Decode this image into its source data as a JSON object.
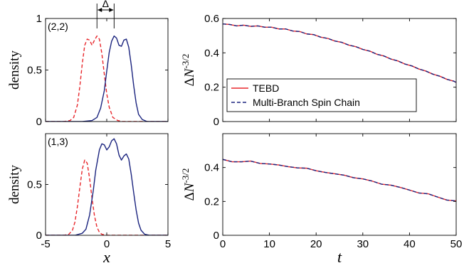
{
  "chart_data": [
    {
      "type": "line",
      "panel": "density-top",
      "annotation": "(2,2)",
      "delta_label": "Δ",
      "ylabel": "density",
      "xlim": [
        -5,
        5
      ],
      "ylim": [
        0,
        1
      ],
      "xticks": [],
      "yticks": [
        0,
        0.5,
        1
      ],
      "series": [
        {
          "color": "#e8262b",
          "dash": true,
          "x": [
            -5,
            -3.5,
            -3,
            -2.7,
            -2.4,
            -2.2,
            -2.0,
            -1.8,
            -1.6,
            -1.4,
            -1.2,
            -1.0,
            -0.8,
            -0.6,
            -0.4,
            -0.2,
            0.0,
            0.2,
            0.5,
            0.9,
            1.3,
            2.0,
            5
          ],
          "y": [
            0,
            0,
            0.01,
            0.04,
            0.16,
            0.34,
            0.56,
            0.74,
            0.8,
            0.79,
            0.74,
            0.79,
            0.83,
            0.8,
            0.66,
            0.46,
            0.27,
            0.14,
            0.04,
            0.01,
            0,
            0,
            0
          ]
        },
        {
          "color": "#1a237e",
          "dash": false,
          "x": [
            -5,
            -2.0,
            -1.2,
            -0.8,
            -0.5,
            -0.2,
            0.0,
            0.2,
            0.4,
            0.6,
            0.8,
            1.0,
            1.2,
            1.4,
            1.6,
            1.8,
            2.0,
            2.2,
            2.4,
            2.6,
            2.9,
            3.3,
            5
          ],
          "y": [
            0,
            0,
            0.01,
            0.04,
            0.13,
            0.3,
            0.49,
            0.67,
            0.78,
            0.83,
            0.81,
            0.74,
            0.73,
            0.79,
            0.8,
            0.72,
            0.55,
            0.35,
            0.18,
            0.07,
            0.02,
            0,
            0
          ]
        }
      ]
    },
    {
      "type": "line",
      "panel": "density-bottom",
      "annotation": "(1,3)",
      "ylabel": "density",
      "xlabel": "x",
      "xlim": [
        -5,
        5
      ],
      "ylim": [
        0,
        1
      ],
      "xticks": [
        -5,
        0,
        5
      ],
      "yticks": [
        0,
        0.5
      ],
      "series": [
        {
          "color": "#e8262b",
          "dash": true,
          "x": [
            -5,
            -3.5,
            -3.1,
            -2.8,
            -2.6,
            -2.4,
            -2.2,
            -2.0,
            -1.8,
            -1.6,
            -1.4,
            -1.2,
            -1.0,
            -0.8,
            -0.6,
            -0.4,
            0.0,
            5
          ],
          "y": [
            0,
            0,
            0.01,
            0.05,
            0.13,
            0.28,
            0.47,
            0.65,
            0.74,
            0.71,
            0.56,
            0.36,
            0.19,
            0.08,
            0.03,
            0.01,
            0,
            0
          ]
        },
        {
          "color": "#1a237e",
          "dash": false,
          "x": [
            -5,
            -2.6,
            -2.0,
            -1.7,
            -1.4,
            -1.1,
            -0.9,
            -0.6,
            -0.4,
            -0.2,
            0.0,
            0.2,
            0.4,
            0.6,
            0.8,
            1.0,
            1.2,
            1.4,
            1.6,
            1.8,
            2.0,
            2.2,
            2.4,
            2.6,
            2.8,
            3.1,
            3.5,
            5
          ],
          "y": [
            0,
            0,
            0.02,
            0.06,
            0.2,
            0.44,
            0.64,
            0.84,
            0.9,
            0.89,
            0.84,
            0.87,
            0.93,
            0.95,
            0.9,
            0.79,
            0.74,
            0.78,
            0.8,
            0.75,
            0.6,
            0.42,
            0.25,
            0.12,
            0.05,
            0.01,
            0,
            0
          ]
        }
      ]
    },
    {
      "type": "line",
      "panel": "dn-top",
      "ylabel": "ΔN^{-3/2}",
      "xlim": [
        0,
        50
      ],
      "ylim": [
        0,
        0.6
      ],
      "xticks": [],
      "yticks": [
        0,
        0.2,
        0.4,
        0.6
      ],
      "legend": {
        "placement": "lower-left",
        "entries": [
          "TEBD",
          "Multi-Branch Spin Chain"
        ]
      },
      "series": [
        {
          "name": "TEBD",
          "color": "#e8262b",
          "dash": false,
          "x": [
            0,
            1.5,
            3,
            4.5,
            6,
            7.5,
            9,
            10.5,
            12,
            13.5,
            15,
            16.5,
            18,
            19.5,
            21,
            22.5,
            24,
            25.5,
            27,
            28.5,
            30,
            31.5,
            33,
            34.5,
            36,
            37.5,
            39,
            40.5,
            42,
            43.5,
            45,
            46.5,
            48,
            49.5,
            50
          ],
          "y": [
            0.568,
            0.565,
            0.557,
            0.561,
            0.554,
            0.557,
            0.549,
            0.549,
            0.539,
            0.539,
            0.527,
            0.524,
            0.51,
            0.506,
            0.491,
            0.484,
            0.469,
            0.461,
            0.445,
            0.436,
            0.42,
            0.41,
            0.392,
            0.382,
            0.364,
            0.353,
            0.335,
            0.324,
            0.306,
            0.294,
            0.276,
            0.264,
            0.246,
            0.235,
            0.228
          ]
        },
        {
          "name": "Multi-Branch Spin Chain",
          "color": "#1a237e",
          "dash": true,
          "x": [
            0,
            1.5,
            3,
            4.5,
            6,
            7.5,
            9,
            10.5,
            12,
            13.5,
            15,
            16.5,
            18,
            19.5,
            21,
            22.5,
            24,
            25.5,
            27,
            28.5,
            30,
            31.5,
            33,
            34.5,
            36,
            37.5,
            39,
            40.5,
            42,
            43.5,
            45,
            46.5,
            48,
            49.5,
            50
          ],
          "y": [
            0.568,
            0.565,
            0.557,
            0.561,
            0.554,
            0.557,
            0.549,
            0.549,
            0.539,
            0.539,
            0.527,
            0.524,
            0.51,
            0.506,
            0.491,
            0.484,
            0.469,
            0.461,
            0.445,
            0.436,
            0.42,
            0.41,
            0.392,
            0.382,
            0.364,
            0.353,
            0.335,
            0.324,
            0.306,
            0.294,
            0.276,
            0.264,
            0.246,
            0.235,
            0.228
          ]
        }
      ]
    },
    {
      "type": "line",
      "panel": "dn-bottom",
      "ylabel": "ΔN^{-3/2}",
      "xlabel": "t",
      "xlim": [
        0,
        50
      ],
      "ylim": [
        0,
        0.6
      ],
      "xticks": [
        0,
        10,
        20,
        30,
        40,
        50
      ],
      "yticks": [
        0,
        0.2,
        0.4
      ],
      "series": [
        {
          "name": "TEBD",
          "color": "#e8262b",
          "dash": false,
          "x": [
            0,
            2,
            4,
            6,
            8,
            10,
            12,
            14,
            16,
            18,
            20,
            22,
            24,
            26,
            28,
            30,
            32,
            34,
            36,
            38,
            40,
            42,
            44,
            46,
            48,
            50
          ],
          "y": [
            0.448,
            0.434,
            0.434,
            0.438,
            0.424,
            0.421,
            0.415,
            0.405,
            0.398,
            0.396,
            0.381,
            0.371,
            0.363,
            0.355,
            0.34,
            0.333,
            0.32,
            0.302,
            0.296,
            0.283,
            0.267,
            0.25,
            0.245,
            0.226,
            0.208,
            0.203
          ]
        },
        {
          "name": "Multi-Branch Spin Chain",
          "color": "#1a237e",
          "dash": true,
          "x": [
            0,
            2,
            4,
            6,
            8,
            10,
            12,
            14,
            16,
            18,
            20,
            22,
            24,
            26,
            28,
            30,
            32,
            34,
            36,
            38,
            40,
            42,
            44,
            46,
            48,
            50
          ],
          "y": [
            0.448,
            0.434,
            0.434,
            0.438,
            0.424,
            0.421,
            0.415,
            0.405,
            0.398,
            0.396,
            0.381,
            0.371,
            0.363,
            0.355,
            0.34,
            0.333,
            0.32,
            0.302,
            0.296,
            0.283,
            0.267,
            0.25,
            0.245,
            0.226,
            0.208,
            0.203
          ]
        }
      ]
    }
  ]
}
